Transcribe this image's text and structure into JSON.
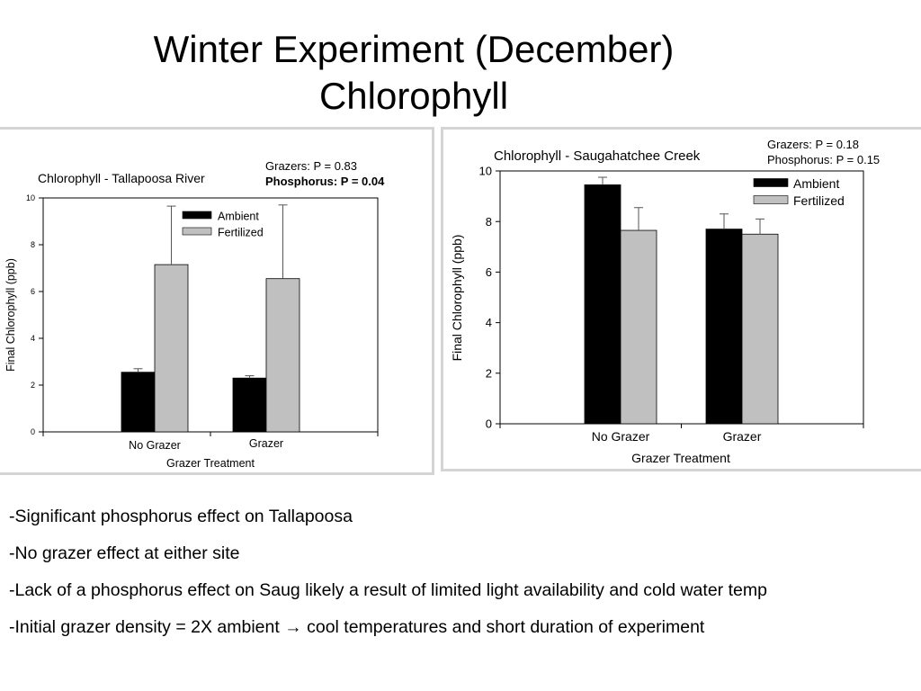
{
  "slide": {
    "title_line1": "Winter Experiment (December)",
    "title_line2": "Chlorophyll"
  },
  "bullets": [
    "-Significant phosphorus effect on Tallapoosa",
    "-No grazer effect at either site",
    "-Lack of a phosphorus effect on Saug likely a result of limited light availability and cold water temp",
    "-Initial grazer density = 2X ambient → cool temperatures and short duration of experiment"
  ],
  "colors": {
    "ambient": "#000000",
    "fertilized": "#c0c0c0"
  },
  "chart_data": [
    {
      "type": "bar",
      "title": "Chlorophyll - Tallapoosa River",
      "xlabel": "Grazer Treatment",
      "ylabel": "Final Chlorophyll (ppb)",
      "categories": [
        "No Grazer",
        "Grazer"
      ],
      "series": [
        {
          "name": "Ambient",
          "values": [
            2.55,
            2.3
          ],
          "errors": [
            0.15,
            0.1
          ]
        },
        {
          "name": "Fertilized",
          "values": [
            7.15,
            6.55
          ],
          "errors": [
            2.5,
            3.15
          ]
        }
      ],
      "ylim": [
        0,
        10
      ],
      "yticks": [
        0,
        2,
        4,
        6,
        8,
        10
      ],
      "legend": "top-left",
      "grid": false,
      "stats": [
        "Grazers: P = 0.83",
        "Phosphorus: P = 0.04"
      ]
    },
    {
      "type": "bar",
      "title": "Chlorophyll - Saugahatchee Creek",
      "xlabel": "Grazer Treatment",
      "ylabel": "Final Chlorophyll (ppb)",
      "categories": [
        "No Grazer",
        "Grazer"
      ],
      "series": [
        {
          "name": "Ambient",
          "values": [
            9.45,
            7.7
          ],
          "errors": [
            0.3,
            0.6
          ]
        },
        {
          "name": "Fertilized",
          "values": [
            7.65,
            7.5
          ],
          "errors": [
            0.9,
            0.6
          ]
        }
      ],
      "ylim": [
        0,
        10
      ],
      "yticks": [
        0,
        2,
        4,
        6,
        8,
        10
      ],
      "legend": "top-right",
      "grid": false,
      "stats": [
        "Grazers: P = 0.18",
        "Phosphorus: P = 0.15"
      ]
    }
  ]
}
